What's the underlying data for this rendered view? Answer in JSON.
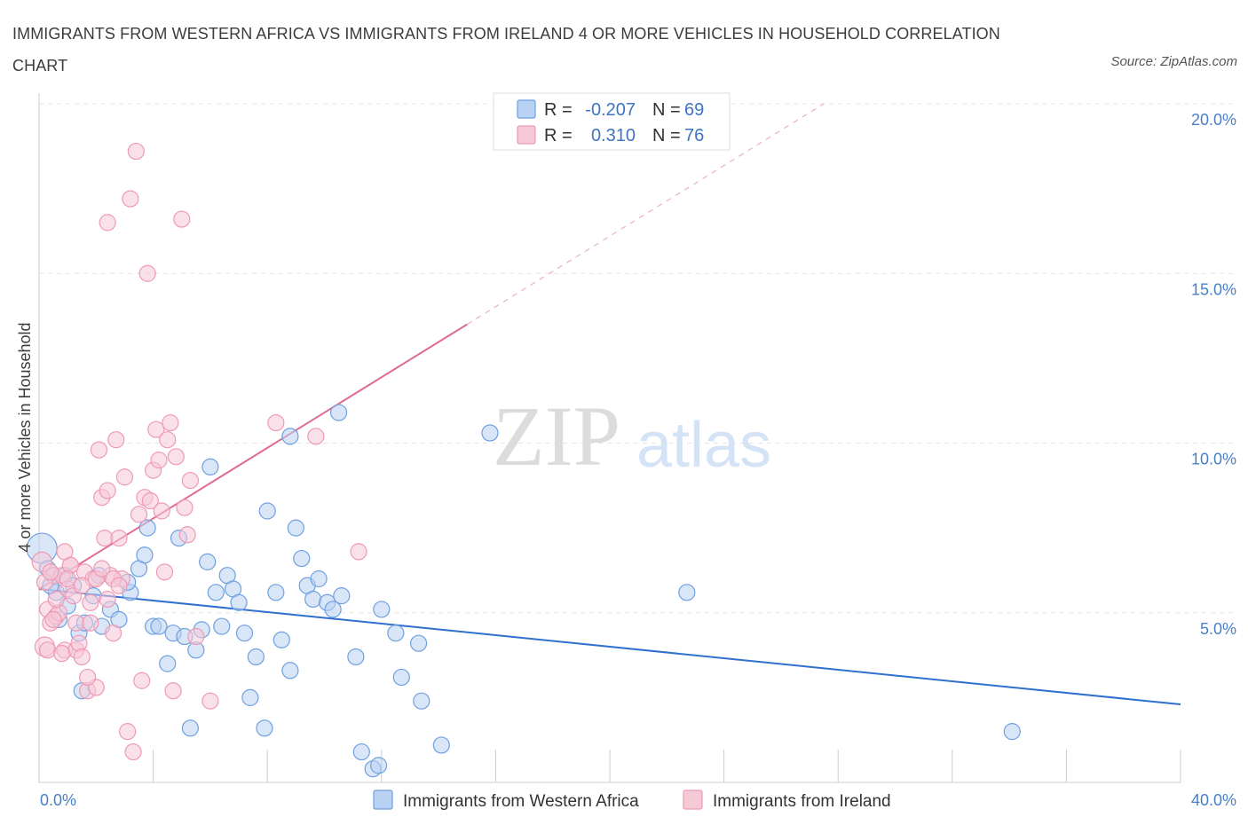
{
  "title": "IMMIGRANTS FROM WESTERN AFRICA VS IMMIGRANTS FROM IRELAND 4 OR MORE VEHICLES IN HOUSEHOLD CORRELATION CHART",
  "source": "Source: ZipAtlas.com",
  "watermark": {
    "zip": "ZIP",
    "atlas": "atlas"
  },
  "chart_data": {
    "type": "scatter",
    "xlabel": "",
    "ylabel": "4 or more Vehicles in Household",
    "xlim": [
      0,
      40
    ],
    "ylim": [
      0,
      20
    ],
    "x_tick_labels": [
      "0.0%",
      "40.0%"
    ],
    "y_ticks": [
      5,
      10,
      15,
      20
    ],
    "y_tick_labels": [
      "5.0%",
      "10.0%",
      "15.0%",
      "20.0%"
    ],
    "grid": true,
    "legend_position": "top-center",
    "series": [
      {
        "name": "Immigrants from Western Africa",
        "color": "#6fa0e0",
        "fill": "#b9d1f3",
        "R": "-0.207",
        "N": "69",
        "trend": {
          "x": [
            0,
            40
          ],
          "y": [
            5.7,
            2.3
          ],
          "color": "#2f6fce"
        },
        "points": [
          [
            0.1,
            6.9
          ],
          [
            0.3,
            6.3
          ],
          [
            0.5,
            6.1
          ],
          [
            0.6,
            5.6
          ],
          [
            0.7,
            4.8
          ],
          [
            0.9,
            6.1
          ],
          [
            1.0,
            5.2
          ],
          [
            1.2,
            5.8
          ],
          [
            1.4,
            4.4
          ],
          [
            1.6,
            4.7
          ],
          [
            1.9,
            5.5
          ],
          [
            2.2,
            4.6
          ],
          [
            2.5,
            5.1
          ],
          [
            2.8,
            4.8
          ],
          [
            3.2,
            5.6
          ],
          [
            3.5,
            6.3
          ],
          [
            3.7,
            6.7
          ],
          [
            3.8,
            7.5
          ],
          [
            4.0,
            4.6
          ],
          [
            4.2,
            4.6
          ],
          [
            4.5,
            3.5
          ],
          [
            4.7,
            4.4
          ],
          [
            4.9,
            7.2
          ],
          [
            5.1,
            4.3
          ],
          [
            5.3,
            1.6
          ],
          [
            5.5,
            3.9
          ],
          [
            5.7,
            4.5
          ],
          [
            5.9,
            6.5
          ],
          [
            6.0,
            9.3
          ],
          [
            6.2,
            5.6
          ],
          [
            6.4,
            4.6
          ],
          [
            6.6,
            6.1
          ],
          [
            6.8,
            5.7
          ],
          [
            7.0,
            5.3
          ],
          [
            7.2,
            4.4
          ],
          [
            7.4,
            2.5
          ],
          [
            7.6,
            3.7
          ],
          [
            7.9,
            1.6
          ],
          [
            8.0,
            8.0
          ],
          [
            8.3,
            5.6
          ],
          [
            8.5,
            4.2
          ],
          [
            8.8,
            3.3
          ],
          [
            9.0,
            7.5
          ],
          [
            9.2,
            6.6
          ],
          [
            8.8,
            10.2
          ],
          [
            9.4,
            5.8
          ],
          [
            9.6,
            5.4
          ],
          [
            9.8,
            6.0
          ],
          [
            10.1,
            5.3
          ],
          [
            10.3,
            5.1
          ],
          [
            10.6,
            5.5
          ],
          [
            10.5,
            10.9
          ],
          [
            11.1,
            3.7
          ],
          [
            11.3,
            0.9
          ],
          [
            11.7,
            0.4
          ],
          [
            11.9,
            0.5
          ],
          [
            12.0,
            5.1
          ],
          [
            12.5,
            4.4
          ],
          [
            12.7,
            3.1
          ],
          [
            13.3,
            4.1
          ],
          [
            13.4,
            2.4
          ],
          [
            14.1,
            1.1
          ],
          [
            15.8,
            10.3
          ],
          [
            22.7,
            5.6
          ],
          [
            34.1,
            1.5
          ],
          [
            0.4,
            5.8
          ],
          [
            1.5,
            2.7
          ],
          [
            2.1,
            6.1
          ],
          [
            3.1,
            5.9
          ]
        ]
      },
      {
        "name": "Immigrants from Ireland",
        "color": "#ee9ab5",
        "fill": "#f6c9d7",
        "R": "0.310",
        "N": "76",
        "trend": {
          "x": [
            0,
            15
          ],
          "y": [
            5.7,
            13.5
          ],
          "color": "#e06a92"
        },
        "trend_dashed": {
          "x": [
            15,
            27.5
          ],
          "y": [
            13.5,
            20.0
          ]
        },
        "points": [
          [
            0.1,
            6.5
          ],
          [
            0.2,
            4.0
          ],
          [
            0.3,
            5.1
          ],
          [
            0.4,
            4.7
          ],
          [
            0.5,
            6.1
          ],
          [
            0.6,
            4.9
          ],
          [
            0.7,
            5.0
          ],
          [
            0.8,
            6.1
          ],
          [
            0.9,
            3.9
          ],
          [
            1.0,
            5.7
          ],
          [
            1.1,
            6.4
          ],
          [
            1.2,
            5.5
          ],
          [
            1.3,
            3.9
          ],
          [
            1.4,
            4.1
          ],
          [
            1.5,
            3.7
          ],
          [
            1.6,
            6.2
          ],
          [
            1.7,
            2.7
          ],
          [
            1.8,
            5.3
          ],
          [
            1.9,
            6.0
          ],
          [
            2.0,
            2.8
          ],
          [
            2.1,
            9.8
          ],
          [
            2.2,
            8.4
          ],
          [
            2.3,
            7.2
          ],
          [
            2.4,
            8.6
          ],
          [
            2.5,
            6.1
          ],
          [
            2.6,
            4.4
          ],
          [
            2.7,
            10.1
          ],
          [
            2.8,
            7.2
          ],
          [
            2.9,
            6.0
          ],
          [
            3.0,
            9.0
          ],
          [
            3.1,
            1.5
          ],
          [
            3.2,
            17.2
          ],
          [
            3.3,
            0.9
          ],
          [
            3.4,
            18.6
          ],
          [
            3.5,
            7.9
          ],
          [
            3.6,
            3.0
          ],
          [
            3.7,
            8.4
          ],
          [
            3.8,
            15.0
          ],
          [
            3.9,
            8.3
          ],
          [
            4.0,
            9.2
          ],
          [
            4.1,
            10.4
          ],
          [
            4.2,
            9.5
          ],
          [
            4.3,
            8.0
          ],
          [
            4.4,
            6.2
          ],
          [
            4.5,
            10.1
          ],
          [
            4.6,
            10.6
          ],
          [
            4.7,
            2.7
          ],
          [
            4.8,
            9.6
          ],
          [
            5.0,
            16.6
          ],
          [
            5.1,
            8.1
          ],
          [
            5.2,
            7.3
          ],
          [
            5.3,
            8.9
          ],
          [
            5.5,
            4.3
          ],
          [
            6.0,
            2.4
          ],
          [
            2.4,
            16.5
          ],
          [
            8.3,
            10.6
          ],
          [
            9.7,
            10.2
          ],
          [
            11.2,
            6.8
          ],
          [
            0.2,
            5.9
          ],
          [
            0.4,
            6.2
          ],
          [
            0.6,
            5.4
          ],
          [
            0.9,
            6.8
          ],
          [
            1.1,
            6.4
          ],
          [
            1.3,
            4.7
          ],
          [
            1.5,
            5.8
          ],
          [
            1.7,
            3.1
          ],
          [
            1.8,
            4.7
          ],
          [
            2.0,
            6.0
          ],
          [
            2.2,
            6.3
          ],
          [
            2.4,
            5.4
          ],
          [
            2.6,
            6.0
          ],
          [
            2.8,
            5.8
          ],
          [
            0.3,
            3.9
          ],
          [
            0.5,
            4.8
          ],
          [
            0.8,
            3.8
          ],
          [
            1.0,
            6.0
          ]
        ]
      }
    ]
  },
  "legend_labels": {
    "r_prefix": "R = ",
    "n_prefix": "N = "
  },
  "bottom_legend": [
    "Immigrants from Western Africa",
    "Immigrants from Ireland"
  ]
}
